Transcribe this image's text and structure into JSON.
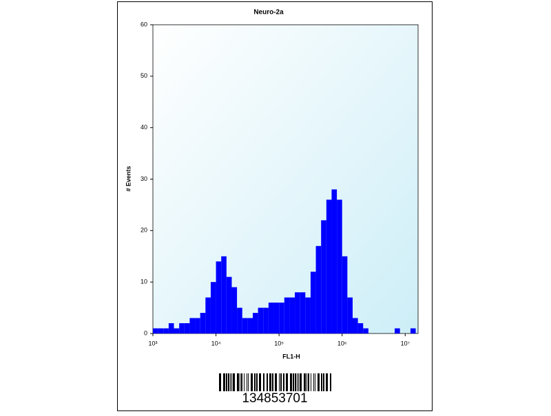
{
  "chart_data": {
    "type": "histogram",
    "title": "Neuro-2a",
    "x_label": "FL1-H",
    "y_label": "# Events",
    "log_x": true,
    "color": "#0000ff",
    "bins": [
      1000,
      1212,
      1468,
      1778,
      2154,
      2610,
      3162,
      3831,
      4642,
      5623,
      6813,
      8254,
      10000,
      12115,
      14678,
      17783,
      21544,
      26102,
      31623,
      38312,
      46416,
      56234,
      68129,
      82540,
      100000,
      121153,
      146780,
      177828,
      215443,
      261016,
      316228,
      383119,
      464159,
      562341,
      681292,
      825404,
      1000000,
      1211528,
      1467799,
      1778279,
      2154435,
      2610157,
      3162278,
      3831187,
      4641589,
      5623413,
      6812921,
      8254042,
      10000000,
      12115277,
      14677993
    ],
    "counts": [
      1,
      1,
      1,
      2,
      1,
      2,
      2,
      3,
      3,
      4,
      7,
      10,
      14,
      15,
      11,
      9,
      5,
      3,
      3,
      4,
      5,
      5,
      6,
      6,
      6,
      7,
      7,
      8,
      8,
      7,
      12,
      17,
      22,
      26,
      28,
      26,
      15,
      7,
      3,
      2,
      1,
      0,
      0,
      0,
      0,
      0,
      1,
      0,
      0,
      1
    ],
    "xlim": [
      1000,
      16000000
    ],
    "xticks": [
      {
        "value": 1000,
        "label": "10³"
      },
      {
        "value": 10000,
        "label": "10⁴"
      },
      {
        "value": 100000,
        "label": "10⁵"
      },
      {
        "value": 1000000,
        "label": "10⁶"
      },
      {
        "value": 10000000,
        "label": "10⁷"
      }
    ],
    "ylim": [
      0,
      60
    ],
    "yticks": [
      0,
      10,
      20,
      30,
      40,
      50,
      60
    ],
    "barcode_text": "134853701"
  }
}
